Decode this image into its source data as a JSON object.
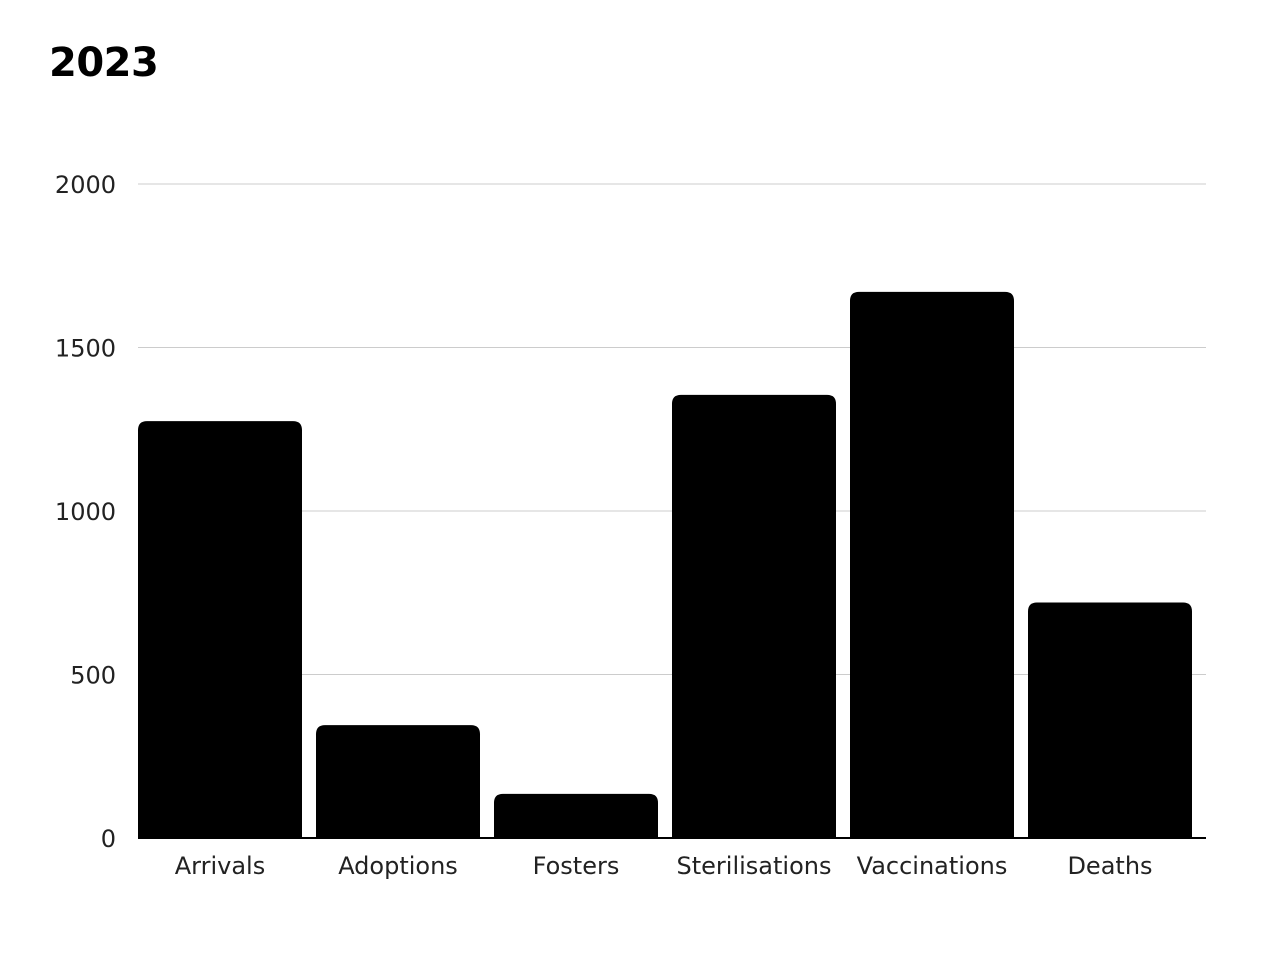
{
  "chart_data": {
    "type": "bar",
    "title": "2023",
    "categories": [
      "Arrivals",
      "Adoptions",
      "Fosters",
      "Sterilisations",
      "Vaccinations",
      "Deaths"
    ],
    "values": [
      1275,
      345,
      135,
      1355,
      1670,
      720
    ],
    "yticks": [
      0,
      500,
      1000,
      1500,
      2000
    ],
    "ylim": [
      0,
      2000
    ],
    "xlabel": "",
    "ylabel": "",
    "grid": true,
    "bar_color": "#000000",
    "grid_color": "#cccccc"
  }
}
